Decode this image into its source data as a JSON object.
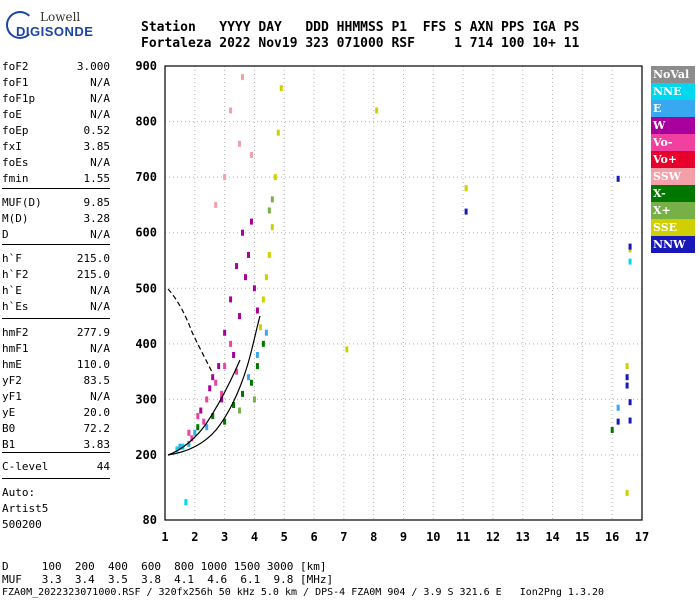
{
  "logo": {
    "line1": "Lowell",
    "line2": "DIGISONDE"
  },
  "header": {
    "row1": "Station   YYYY DAY   DDD HHMMSS P1  FFS S AXN PPS IGA PS",
    "row2": "Fortaleza 2022 Nov19 323 071000 RSF     1 714 100 10+ 11"
  },
  "params": [
    {
      "k": "foF2",
      "v": "3.000"
    },
    {
      "k": "foF1",
      "v": "N/A"
    },
    {
      "k": "foF1p",
      "v": "N/A"
    },
    {
      "k": "foE",
      "v": "N/A"
    },
    {
      "k": "foEp",
      "v": "0.52"
    },
    {
      "k": "fxI",
      "v": "3.85"
    },
    {
      "k": "foEs",
      "v": "N/A"
    },
    {
      "k": "fmin",
      "v": "1.55"
    },
    {
      "k": "MUF(D)",
      "v": "9.85"
    },
    {
      "k": "M(D)",
      "v": "3.28"
    },
    {
      "k": "D",
      "v": "N/A"
    },
    {
      "k": "h`F",
      "v": "215.0"
    },
    {
      "k": "h`F2",
      "v": "215.0"
    },
    {
      "k": "h`E",
      "v": "N/A"
    },
    {
      "k": "h`Es",
      "v": "N/A"
    },
    {
      "k": "hmF2",
      "v": "277.9"
    },
    {
      "k": "hmF1",
      "v": "N/A"
    },
    {
      "k": "hmE",
      "v": "110.0"
    },
    {
      "k": "yF2",
      "v": "83.5"
    },
    {
      "k": "yF1",
      "v": "N/A"
    },
    {
      "k": "yE",
      "v": "20.0"
    },
    {
      "k": "B0",
      "v": "72.2"
    },
    {
      "k": "B1",
      "v": "3.83"
    },
    {
      "k": "C-level",
      "v": "44"
    }
  ],
  "auto": [
    "Auto:",
    "Artist5",
    "500200"
  ],
  "legend": [
    {
      "label": "NoVal",
      "color": "#8c8c8c"
    },
    {
      "label": "NNE",
      "color": "#00d8f0"
    },
    {
      "label": "E",
      "color": "#38a8f0"
    },
    {
      "label": "W",
      "color": "#a8009c"
    },
    {
      "label": "Vo-",
      "color": "#f040a0"
    },
    {
      "label": "Vo+",
      "color": "#e8002c"
    },
    {
      "label": "SSW",
      "color": "#f4a0a8"
    },
    {
      "label": "X-",
      "color": "#007800"
    },
    {
      "label": "X+",
      "color": "#78b048"
    },
    {
      "label": "SSE",
      "color": "#d0d000"
    },
    {
      "label": "NNW",
      "color": "#1818b8"
    }
  ],
  "footer": {
    "row1": "D     100  200  400  600  800 1000 1500 3000 [km]",
    "row2": "MUF   3.3  3.4  3.5  3.8  4.1  4.6  6.1  9.8 [MHz]",
    "row3": "FZA0M_2022323071000.RSF / 320fx256h 50 kHz 5.0 km / DPS-4 FZA0M 904 / 3.9 S 321.6 E   Ion2Png 1.3.20"
  },
  "chart_data": {
    "type": "scatter",
    "xlim": [
      1,
      17
    ],
    "ylim": [
      80,
      900
    ],
    "xticks": [
      1,
      2,
      3,
      4,
      5,
      6,
      7,
      8,
      9,
      10,
      11,
      12,
      13,
      14,
      15,
      16,
      17
    ],
    "yticks": [
      80,
      200,
      300,
      400,
      500,
      600,
      700,
      800,
      900
    ],
    "grid": "dotted",
    "legend_position": "right",
    "series": [
      {
        "name": "W",
        "color": "#a8009c",
        "points": [
          [
            2.2,
            280
          ],
          [
            2.5,
            320
          ],
          [
            2.8,
            360
          ],
          [
            3.0,
            420
          ],
          [
            3.2,
            480
          ],
          [
            3.4,
            540
          ],
          [
            3.6,
            600
          ],
          [
            3.8,
            560
          ],
          [
            3.9,
            620
          ],
          [
            4.0,
            500
          ],
          [
            3.3,
            380
          ],
          [
            2.6,
            340
          ],
          [
            3.5,
            450
          ],
          [
            3.7,
            520
          ],
          [
            2.9,
            300
          ],
          [
            4.1,
            460
          ]
        ]
      },
      {
        "name": "Vo-",
        "color": "#f040a0",
        "points": [
          [
            1.8,
            240
          ],
          [
            2.1,
            270
          ],
          [
            2.4,
            300
          ],
          [
            2.7,
            330
          ],
          [
            3.0,
            360
          ],
          [
            3.2,
            400
          ],
          [
            2.3,
            260
          ],
          [
            2.9,
            310
          ],
          [
            3.4,
            350
          ],
          [
            1.9,
            230
          ]
        ]
      },
      {
        "name": "X-",
        "color": "#007800",
        "points": [
          [
            2.6,
            270
          ],
          [
            3.0,
            260
          ],
          [
            3.3,
            290
          ],
          [
            3.6,
            310
          ],
          [
            3.9,
            330
          ],
          [
            4.1,
            360
          ],
          [
            4.3,
            400
          ],
          [
            2.1,
            250
          ],
          [
            16.0,
            245
          ]
        ]
      },
      {
        "name": "E",
        "color": "#38a8f0",
        "points": [
          [
            1.5,
            215
          ],
          [
            1.8,
            220
          ],
          [
            2.0,
            240
          ],
          [
            2.4,
            250
          ],
          [
            3.8,
            340
          ],
          [
            4.1,
            380
          ],
          [
            4.4,
            420
          ],
          [
            16.2,
            285
          ]
        ]
      },
      {
        "name": "SSE",
        "color": "#d0d000",
        "points": [
          [
            4.2,
            430
          ],
          [
            4.3,
            480
          ],
          [
            4.4,
            520
          ],
          [
            4.5,
            560
          ],
          [
            4.6,
            610
          ],
          [
            4.7,
            700
          ],
          [
            4.8,
            780
          ],
          [
            4.9,
            860
          ],
          [
            8.1,
            820
          ],
          [
            11.1,
            680
          ],
          [
            16.5,
            360
          ],
          [
            16.6,
            570
          ],
          [
            16.5,
            130
          ],
          [
            7.1,
            390
          ]
        ]
      },
      {
        "name": "NNW",
        "color": "#1818b8",
        "points": [
          [
            11.1,
            638
          ],
          [
            16.2,
            697
          ],
          [
            16.5,
            340
          ],
          [
            16.6,
            295
          ],
          [
            16.5,
            325
          ],
          [
            16.6,
            575
          ],
          [
            16.2,
            260
          ],
          [
            16.6,
            262
          ]
        ]
      },
      {
        "name": "NNE",
        "color": "#00d8f0",
        "points": [
          [
            1.4,
            210
          ],
          [
            1.7,
            113
          ],
          [
            16.6,
            548
          ],
          [
            1.6,
            215
          ]
        ]
      },
      {
        "name": "SSW",
        "color": "#f4a0a8",
        "points": [
          [
            3.0,
            700
          ],
          [
            3.2,
            820
          ],
          [
            3.5,
            760
          ],
          [
            3.6,
            880
          ],
          [
            2.7,
            650
          ],
          [
            3.9,
            740
          ]
        ]
      },
      {
        "name": "X+",
        "color": "#78b048",
        "points": [
          [
            4.5,
            640
          ],
          [
            4.6,
            660
          ],
          [
            3.5,
            280
          ],
          [
            4.0,
            300
          ]
        ]
      }
    ]
  }
}
